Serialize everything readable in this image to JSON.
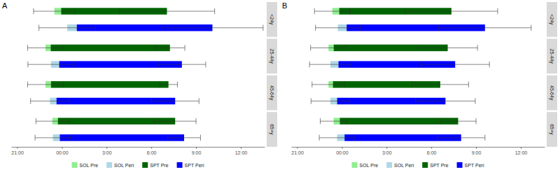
{
  "chart_data": [
    {
      "type": "bar",
      "title": "A",
      "orientation": "horizontal",
      "legend": "bottom",
      "categories": [
        "<24y",
        "25-44y",
        "45-64y",
        "65+y"
      ],
      "xlim": [
        -3.4,
        13.6
      ],
      "xticks": [
        {
          "value": -3,
          "label": "21:00"
        },
        {
          "value": 0,
          "label": "00:00"
        },
        {
          "value": 3,
          "label": "3:00"
        },
        {
          "value": 6,
          "label": "6:00"
        },
        {
          "value": 9,
          "label": "9:00"
        },
        {
          "value": 12,
          "label": "12:00"
        }
      ],
      "series": [
        {
          "name": "SOL Pre",
          "color": "#90ee90",
          "values": [
            [
              -0.5,
              -0.05
            ],
            [
              -1.1,
              -0.75
            ],
            [
              -1.1,
              -0.73
            ],
            [
              -0.64,
              -0.27
            ]
          ],
          "error": [
            1.4,
            1.2,
            1.2,
            1.1
          ]
        },
        {
          "name": "SOL Peri",
          "color": "#add8e6",
          "values": [
            [
              0.36,
              1.0
            ],
            [
              -0.73,
              -0.18
            ],
            [
              -0.8,
              -0.36
            ],
            [
              -0.6,
              -0.14
            ]
          ],
          "error": [
            1.9,
            1.55,
            1.3,
            1.2
          ]
        },
        {
          "name": "SPT Pre",
          "color": "#006400",
          "values": [
            [
              -0.05,
              7.05
            ],
            [
              -0.75,
              7.25
            ],
            [
              -0.73,
              7.15
            ],
            [
              -0.27,
              7.6
            ]
          ],
          "error": [
            3.2,
            1.0,
            0.6,
            1.4
          ]
        },
        {
          "name": "SPT Peri",
          "color": "#0000ff",
          "values": [
            [
              1.0,
              10.1
            ],
            [
              -0.18,
              8.05
            ],
            [
              -0.36,
              7.6
            ],
            [
              -0.14,
              8.2
            ]
          ],
          "error": [
            3.4,
            1.6,
            1.6,
            1.1
          ]
        }
      ]
    },
    {
      "type": "bar",
      "title": "B",
      "orientation": "horizontal",
      "legend": "bottom",
      "categories": [
        "<24y",
        "25-44y",
        "45-64y",
        "65+y"
      ],
      "xlim": [
        -3.4,
        13.6
      ],
      "xticks": [
        {
          "value": -3,
          "label": "21:00"
        },
        {
          "value": 0,
          "label": "00:00"
        },
        {
          "value": 3,
          "label": "3:00"
        },
        {
          "value": 6,
          "label": "6:00"
        },
        {
          "value": 9,
          "label": "9:00"
        },
        {
          "value": 12,
          "label": "12:00"
        }
      ],
      "series": [
        {
          "name": "SOL Pre",
          "color": "#90ee90",
          "values": [
            [
              -0.64,
              -0.18
            ],
            [
              -0.9,
              -0.55
            ],
            [
              -0.9,
              -0.6
            ],
            [
              -0.55,
              -0.14
            ]
          ],
          "error": [
            1.2,
            1.2,
            1.1,
            0.9
          ]
        },
        {
          "name": "SOL Peri",
          "color": "#add8e6",
          "values": [
            [
              -0.27,
              0.32
            ],
            [
              -0.77,
              -0.23
            ],
            [
              -0.77,
              -0.32
            ],
            [
              -0.32,
              0.18
            ]
          ],
          "error": [
            1.5,
            1.4,
            1.3,
            1.2
          ]
        },
        {
          "name": "SPT Pre",
          "color": "#006400",
          "values": [
            [
              -0.18,
              7.35
            ],
            [
              -0.55,
              7.1
            ],
            [
              -0.6,
              6.6
            ],
            [
              -0.14,
              7.8
            ]
          ],
          "error": [
            3.1,
            2.0,
            1.9,
            1.2
          ]
        },
        {
          "name": "SPT Peri",
          "color": "#0000ff",
          "values": [
            [
              0.32,
              9.6
            ],
            [
              -0.23,
              7.6
            ],
            [
              -0.32,
              6.95
            ],
            [
              0.18,
              8.0
            ]
          ],
          "error": [
            3.1,
            2.3,
            2.0,
            1.6
          ]
        }
      ]
    }
  ]
}
